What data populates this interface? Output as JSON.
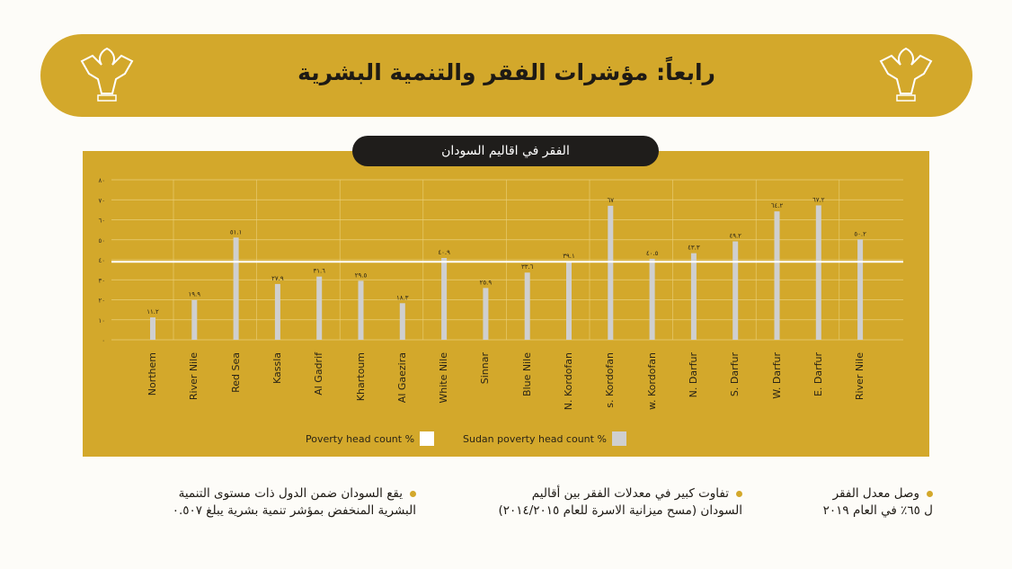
{
  "header": {
    "title": "رابعاً: مؤشرات الفقر والتنمية البشرية"
  },
  "subtitle": "الفقر في اقاليم السودان",
  "colors": {
    "gold": "#d3a82b",
    "bar": "#cfcfcf",
    "line": "#ffffff",
    "dark": "#1f1d1b"
  },
  "chart_data": {
    "type": "bar",
    "title": "الفقر في اقاليم السودان",
    "categories": [
      "Northem",
      "River Nile",
      "Red Sea",
      "Kassla",
      "Al Gadrif",
      "Khartoum",
      "Al Gaezira",
      "White Nile",
      "Sinnar",
      "Blue Nile",
      "N. Kordofan",
      "s. Kordofan",
      "w. Kordofan",
      "N. Darfur",
      "S. Darfur",
      "W. Darfur",
      "E. Darfur",
      "River Nile"
    ],
    "values": [
      11.2,
      19.9,
      51.1,
      27.9,
      31.6,
      29.5,
      18.3,
      40.9,
      25.9,
      33.6,
      39.1,
      67,
      40.5,
      43.3,
      49.2,
      64.2,
      67.2,
      50.2
    ],
    "value_labels": [
      "١١.٢",
      "١٩.٩",
      "٥١.١",
      "٢٧.٩",
      "٣١.٦",
      "٢٩.٥",
      "١٨.٣",
      "٤٠.٩",
      "٢٥.٩",
      "٣٣.٦",
      "٣٩.١",
      "٦٧",
      "٤٠.٥",
      "٤٣.٣",
      "٤٩.٢",
      "٦٤.٢",
      "٦٧.٢",
      "٥٠.٢"
    ],
    "reference_line": 39,
    "ylim": [
      0,
      80
    ],
    "yticks": [
      0,
      10,
      20,
      30,
      40,
      50,
      60,
      70,
      80
    ],
    "ytick_labels": [
      "٠",
      "١٠",
      "٢٠",
      "٣٠",
      "٤٠",
      "٥٠",
      "٦٠",
      "٧٠",
      "٨٠"
    ],
    "grid": true,
    "legend": [
      "Poverty head count %",
      "Sudan poverty head count %"
    ],
    "legend_position": "bottom"
  },
  "bullets": [
    {
      "line1": "وصل معدل الفقر",
      "line2": "ل ٦٥٪ في العام ٢٠١٩"
    },
    {
      "line1": "تفاوت كبير في معدلات الفقر بين أقاليم",
      "line2": "السودان (مسح ميزانية الاسرة للعام ٢٠١٤/٢٠١٥)"
    },
    {
      "line1": "يقع السودان ضمن الدول ذات مستوى التنمية",
      "line2": "البشرية المنخفض بمؤشر تنمية بشرية يبلغ ٠.٥٠٧"
    }
  ]
}
